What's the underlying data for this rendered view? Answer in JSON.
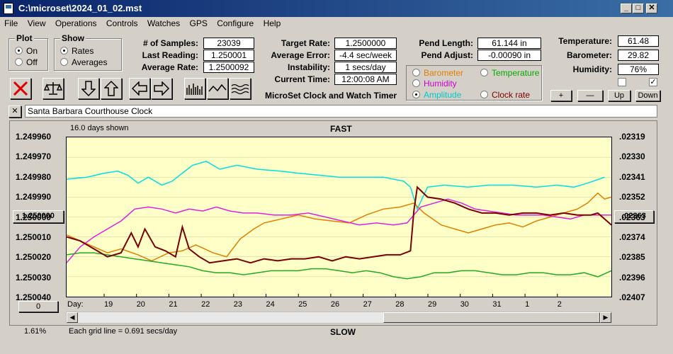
{
  "window": {
    "title": "C:\\microset\\2024_01_02.mst"
  },
  "menu": [
    "File",
    "View",
    "Operations",
    "Controls",
    "Watches",
    "GPS",
    "Configure",
    "Help"
  ],
  "plot_group": {
    "label": "Plot",
    "options": [
      "On",
      "Off"
    ],
    "selected": "On"
  },
  "show_group": {
    "label": "Show",
    "options": [
      "Rates",
      "Averages"
    ],
    "selected": "Rates"
  },
  "stats": [
    {
      "label": "# of Samples:",
      "value": "23039"
    },
    {
      "label": "Last Reading:",
      "value": "1.250001"
    },
    {
      "label": "Average Rate:",
      "value": "1.2500092"
    }
  ],
  "rates": [
    {
      "label": "Target Rate:",
      "value": "1.2500000"
    },
    {
      "label": "Average Error:",
      "value": "-4.4 sec/week"
    },
    {
      "label": "Instability:",
      "value": "1 secs/day"
    },
    {
      "label": "Current Time:",
      "value": "12:00:08 AM"
    }
  ],
  "app_caption": "MicroSet Clock and Watch Timer",
  "pendulum": [
    {
      "label": "Pend Length:",
      "value": "61.144 in"
    },
    {
      "label": "Pend Adjust:",
      "value": "-0.00090 in"
    }
  ],
  "env": [
    {
      "label": "Temperature:",
      "value": "61.48"
    },
    {
      "label": "Barometer:",
      "value": "29.82"
    },
    {
      "label": "Humidity:",
      "value": "76%"
    }
  ],
  "env_checkbox_checked": [
    false,
    true
  ],
  "env_buttons": [
    "+",
    "—",
    "Up",
    "Down"
  ],
  "series_options": [
    {
      "label": "Barometer",
      "color": "#e07f00",
      "selected": false
    },
    {
      "label": "Temperature",
      "color": "#00aa00",
      "selected": false
    },
    {
      "label": "Humidity",
      "color": "#cc00cc",
      "selected": false
    },
    {
      "label": "Clock rate",
      "color": "#7a0000",
      "selected": false
    },
    {
      "label": "Amplitude",
      "color": "#00c8c8",
      "selected": true
    }
  ],
  "clock_name": "Santa Barbara Courthouse Clock",
  "close_x": "✕",
  "chart": {
    "days_shown": "16.0 days shown",
    "top_label": "FAST",
    "bottom_label": "SLOW",
    "grid_note": "Each grid line = 0.691 secs/day",
    "percent": "1.61%",
    "left_button": "1.250000",
    "right_button": ".02363",
    "zero_button": "0",
    "day_label": "Day:"
  },
  "chart_data": {
    "type": "line",
    "left_axis_ticks": [
      "1.249960",
      "1.249970",
      "1.249980",
      "1.249990",
      "1.250000",
      "1.250010",
      "1.250020",
      "1.250030",
      "1.250040"
    ],
    "right_axis_ticks": [
      ".02319",
      ".02330",
      ".02341",
      ".02352",
      ".02363",
      ".02374",
      ".02385",
      ".02396",
      ".02407"
    ],
    "ylim_left": [
      1.24996,
      1.25004
    ],
    "day_ticks": [
      "19",
      "20",
      "21",
      "22",
      "23",
      "24",
      "25",
      "26",
      "27",
      "28",
      "29",
      "30",
      "31",
      "1",
      "2"
    ],
    "day_range": [
      18.2,
      34.2
    ],
    "series": [
      {
        "name": "Amplitude",
        "color": "#00e0e0",
        "values": [
          [
            18.2,
            1.249981
          ],
          [
            18.8,
            1.24998
          ],
          [
            19.3,
            1.249978
          ],
          [
            19.7,
            1.249977
          ],
          [
            20.0,
            1.249979
          ],
          [
            20.3,
            1.249983
          ],
          [
            20.6,
            1.24998
          ],
          [
            21.0,
            1.249984
          ],
          [
            21.3,
            1.249982
          ],
          [
            21.6,
            1.249978
          ],
          [
            21.9,
            1.249974
          ],
          [
            22.3,
            1.249972
          ],
          [
            22.7,
            1.249976
          ],
          [
            23.2,
            1.249974
          ],
          [
            23.8,
            1.249976
          ],
          [
            24.5,
            1.249977
          ],
          [
            25.0,
            1.249978
          ],
          [
            25.6,
            1.249979
          ],
          [
            26.2,
            1.24998
          ],
          [
            26.8,
            1.24998
          ],
          [
            27.5,
            1.24998
          ],
          [
            28.1,
            1.249982
          ],
          [
            28.3,
            1.249985
          ],
          [
            28.5,
            1.249996
          ],
          [
            28.8,
            1.249985
          ],
          [
            29.3,
            1.249984
          ],
          [
            30.0,
            1.249985
          ],
          [
            30.6,
            1.249984
          ],
          [
            31.3,
            1.249984
          ],
          [
            32.0,
            1.249985
          ],
          [
            32.6,
            1.249984
          ],
          [
            33.1,
            1.249985
          ],
          [
            33.5,
            1.249983
          ],
          [
            34.0,
            1.24998
          ]
        ]
      },
      {
        "name": "Barometer",
        "color": "#e07f00",
        "values": [
          [
            18.2,
            1.250009
          ],
          [
            18.6,
            1.250012
          ],
          [
            19.0,
            1.250015
          ],
          [
            19.4,
            1.250018
          ],
          [
            19.8,
            1.250016
          ],
          [
            20.3,
            1.250019
          ],
          [
            20.7,
            1.250022
          ],
          [
            21.2,
            1.250018
          ],
          [
            21.6,
            1.250017
          ],
          [
            22.0,
            1.250014
          ],
          [
            22.5,
            1.250018
          ],
          [
            22.9,
            1.25002
          ],
          [
            23.3,
            1.250011
          ],
          [
            23.7,
            1.250006
          ],
          [
            24.0,
            1.250003
          ],
          [
            24.5,
            1.250001
          ],
          [
            25.0,
            1.249999
          ],
          [
            25.5,
            1.250001
          ],
          [
            26.0,
            1.250002
          ],
          [
            26.5,
            1.250003
          ],
          [
            27.0,
            1.249999
          ],
          [
            27.5,
            1.249996
          ],
          [
            28.0,
            1.249995
          ],
          [
            28.4,
            1.249993
          ],
          [
            28.7,
            1.249998
          ],
          [
            29.2,
            1.250004
          ],
          [
            29.6,
            1.250006
          ],
          [
            30.0,
            1.250008
          ],
          [
            30.4,
            1.250006
          ],
          [
            30.8,
            1.250004
          ],
          [
            31.2,
            1.250003
          ],
          [
            31.6,
            1.250005
          ],
          [
            32.0,
            1.250002
          ],
          [
            32.4,
            1.25
          ],
          [
            32.8,
            1.249998
          ],
          [
            33.2,
            1.249996
          ],
          [
            33.5,
            1.249993
          ],
          [
            33.8,
            1.249988
          ],
          [
            34.0,
            1.249991
          ],
          [
            34.2,
            1.24999
          ]
        ]
      },
      {
        "name": "Humidity",
        "color": "#e020e0",
        "values": [
          [
            18.2,
            1.250023
          ],
          [
            18.6,
            1.250015
          ],
          [
            19.0,
            1.25001
          ],
          [
            19.4,
            1.250006
          ],
          [
            19.8,
            1.250002
          ],
          [
            20.2,
            1.249996
          ],
          [
            20.6,
            1.249995
          ],
          [
            21.0,
            1.249996
          ],
          [
            21.4,
            1.249998
          ],
          [
            21.8,
            1.249996
          ],
          [
            22.2,
            1.249997
          ],
          [
            22.6,
            1.249995
          ],
          [
            23.0,
            1.249997
          ],
          [
            23.4,
            1.249998
          ],
          [
            23.8,
            1.249998
          ],
          [
            24.3,
            1.249999
          ],
          [
            24.8,
            1.249999
          ],
          [
            25.3,
            1.249998
          ],
          [
            25.8,
            1.25
          ],
          [
            26.3,
            1.250002
          ],
          [
            26.8,
            1.250004
          ],
          [
            27.3,
            1.250003
          ],
          [
            27.8,
            1.250004
          ],
          [
            28.2,
            1.250003
          ],
          [
            28.6,
            1.249995
          ],
          [
            29.0,
            1.249993
          ],
          [
            29.4,
            1.249991
          ],
          [
            29.8,
            1.249993
          ],
          [
            30.2,
            1.249996
          ],
          [
            30.6,
            1.249997
          ],
          [
            31.0,
            1.249998
          ],
          [
            31.4,
            1.249999
          ],
          [
            31.8,
            1.249999
          ],
          [
            32.2,
            1.249999
          ],
          [
            32.6,
            1.25
          ],
          [
            33.0,
            1.250001
          ],
          [
            33.4,
            1.249999
          ],
          [
            33.8,
            1.249999
          ],
          [
            34.2,
            1.249999
          ]
        ]
      },
      {
        "name": "Temperature",
        "color": "#22aa22",
        "values": [
          [
            18.2,
            1.250019
          ],
          [
            18.6,
            1.250018
          ],
          [
            19.0,
            1.250018
          ],
          [
            19.4,
            1.250019
          ],
          [
            19.8,
            1.25002
          ],
          [
            20.2,
            1.250021
          ],
          [
            20.6,
            1.250022
          ],
          [
            21.0,
            1.250023
          ],
          [
            21.4,
            1.250024
          ],
          [
            21.8,
            1.250025
          ],
          [
            22.2,
            1.250027
          ],
          [
            22.6,
            1.250028
          ],
          [
            23.0,
            1.250028
          ],
          [
            23.4,
            1.250029
          ],
          [
            23.8,
            1.250028
          ],
          [
            24.2,
            1.250027
          ],
          [
            24.6,
            1.250027
          ],
          [
            25.0,
            1.250027
          ],
          [
            25.4,
            1.250026
          ],
          [
            25.8,
            1.250026
          ],
          [
            26.2,
            1.250027
          ],
          [
            26.6,
            1.250028
          ],
          [
            27.0,
            1.250027
          ],
          [
            27.4,
            1.250028
          ],
          [
            27.8,
            1.25003
          ],
          [
            28.2,
            1.250031
          ],
          [
            28.6,
            1.25003
          ],
          [
            29.0,
            1.250028
          ],
          [
            29.4,
            1.250028
          ],
          [
            29.8,
            1.250027
          ],
          [
            30.2,
            1.250027
          ],
          [
            30.6,
            1.250028
          ],
          [
            31.0,
            1.250029
          ],
          [
            31.4,
            1.250029
          ],
          [
            31.8,
            1.250028
          ],
          [
            32.2,
            1.250028
          ],
          [
            32.6,
            1.250029
          ],
          [
            33.0,
            1.250029
          ],
          [
            33.4,
            1.250028
          ],
          [
            33.8,
            1.25003
          ],
          [
            34.2,
            1.250027
          ]
        ]
      },
      {
        "name": "Clock rate",
        "color": "#7a0000",
        "values": [
          [
            18.2,
            1.25001
          ],
          [
            18.6,
            1.250012
          ],
          [
            19.0,
            1.250016
          ],
          [
            19.4,
            1.25002
          ],
          [
            19.8,
            1.250018
          ],
          [
            20.1,
            1.250008
          ],
          [
            20.3,
            1.250015
          ],
          [
            20.5,
            1.250006
          ],
          [
            20.8,
            1.250015
          ],
          [
            21.1,
            1.250017
          ],
          [
            21.4,
            1.25002
          ],
          [
            21.6,
            1.250005
          ],
          [
            21.8,
            1.250016
          ],
          [
            22.1,
            1.25002
          ],
          [
            22.4,
            1.250023
          ],
          [
            22.8,
            1.250022
          ],
          [
            23.2,
            1.250021
          ],
          [
            23.6,
            1.250023
          ],
          [
            24.0,
            1.250021
          ],
          [
            24.4,
            1.250022
          ],
          [
            24.8,
            1.250021
          ],
          [
            25.2,
            1.250021
          ],
          [
            25.6,
            1.25002
          ],
          [
            26.0,
            1.250022
          ],
          [
            26.4,
            1.25002
          ],
          [
            26.8,
            1.250021
          ],
          [
            27.2,
            1.25002
          ],
          [
            27.6,
            1.250019
          ],
          [
            28.0,
            1.250019
          ],
          [
            28.3,
            1.250017
          ],
          [
            28.4,
            1.249997
          ],
          [
            28.5,
            1.249985
          ],
          [
            28.8,
            1.24999
          ],
          [
            29.2,
            1.249991
          ],
          [
            29.6,
            1.249993
          ],
          [
            30.0,
            1.249996
          ],
          [
            30.4,
            1.249998
          ],
          [
            30.8,
            1.249998
          ],
          [
            31.2,
            1.249999
          ],
          [
            31.6,
            1.249998
          ],
          [
            32.0,
            1.249998
          ],
          [
            32.4,
            1.249999
          ],
          [
            32.8,
            1.249998
          ],
          [
            33.2,
            1.249999
          ],
          [
            33.6,
            1.249999
          ],
          [
            33.8,
            1.249998
          ],
          [
            34.0,
            1.250001
          ],
          [
            34.2,
            1.250004
          ]
        ]
      }
    ]
  }
}
